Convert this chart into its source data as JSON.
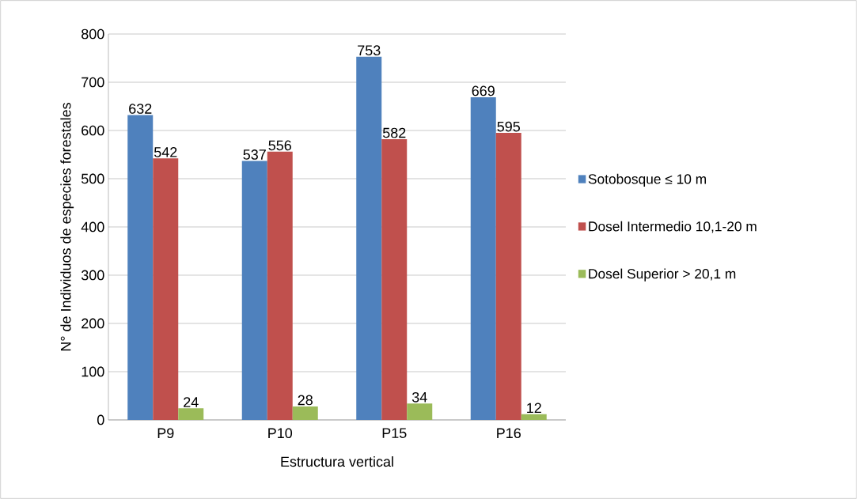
{
  "chart_data": {
    "type": "bar",
    "xlabel": "Estructura vertical",
    "ylabel": "N° de Individuos de especies forestales",
    "categories": [
      "P9",
      "P10",
      "P15",
      "P16"
    ],
    "series": [
      {
        "name": "Sotobosque ≤ 10 m",
        "color": "#4f81bd",
        "values": [
          632,
          537,
          753,
          669
        ]
      },
      {
        "name": "Dosel Intermedio 10,1-20 m",
        "color": "#c0504d",
        "values": [
          542,
          556,
          582,
          595
        ]
      },
      {
        "name": "Dosel Superior > 20,1 m",
        "color": "#9bbb59",
        "values": [
          24,
          28,
          34,
          12
        ]
      }
    ],
    "ylim": [
      0,
      800
    ],
    "yticks": [
      0,
      100,
      200,
      300,
      400,
      500,
      600,
      700,
      800
    ],
    "grid": "y",
    "legend": "right",
    "data_labels": true
  }
}
